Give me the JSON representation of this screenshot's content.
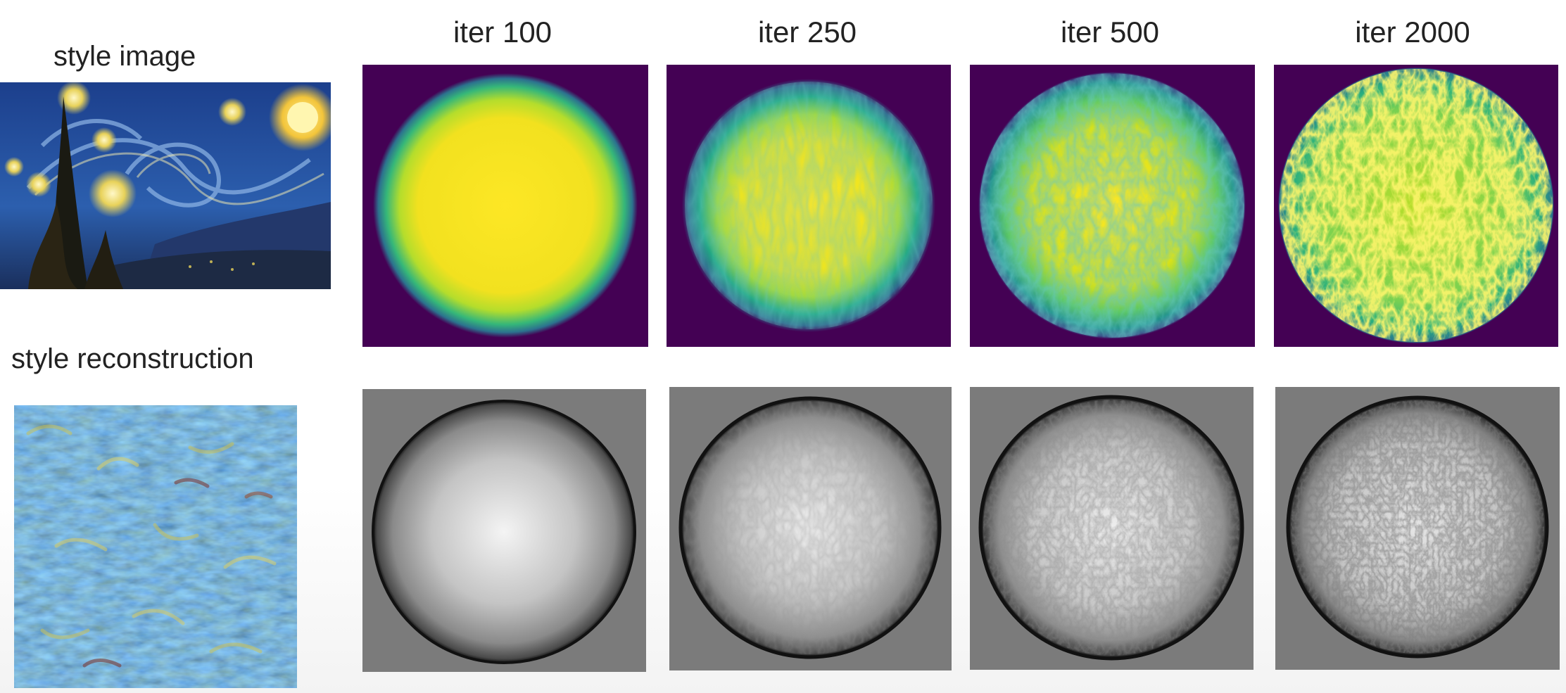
{
  "rows": {
    "style_image_label": "style image",
    "style_reconstruction_label": "style reconstruction"
  },
  "columns": [
    {
      "label": "iter 100"
    },
    {
      "label": "iter 250"
    },
    {
      "label": "iter 500"
    },
    {
      "label": "iter 2000"
    }
  ],
  "colors": {
    "heatmap_background": "#440154",
    "heatmap_high": "#fde725",
    "heatmap_mid": "#21918c",
    "render_background": "#7b7b7b"
  }
}
